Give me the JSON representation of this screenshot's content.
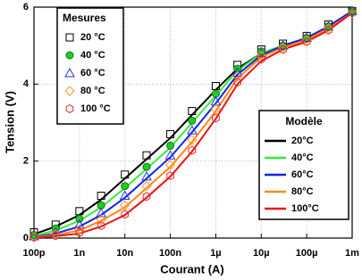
{
  "chart_data": {
    "type": "line",
    "x_label": "Courant (A)",
    "y_label": "Tension (V)",
    "xscale": "log",
    "xlim": [
      1e-10,
      0.001
    ],
    "xticks": [
      {
        "value": 1e-10,
        "label": "100p"
      },
      {
        "value": 1e-09,
        "label": "1n"
      },
      {
        "value": 1e-08,
        "label": "10n"
      },
      {
        "value": 1e-07,
        "label": "100n"
      },
      {
        "value": 1e-06,
        "label": "1µ"
      },
      {
        "value": 1e-05,
        "label": "10µ"
      },
      {
        "value": 0.0001,
        "label": "100µ"
      },
      {
        "value": 0.001,
        "label": "1m"
      }
    ],
    "ylim": [
      0,
      6
    ],
    "yticks": [
      0,
      2,
      4,
      6
    ],
    "grid": true,
    "x": [
      1e-10,
      3e-10,
      1e-09,
      3e-09,
      1e-08,
      3e-08,
      1e-07,
      3e-07,
      1e-06,
      3e-06,
      1e-05,
      3e-05,
      0.0001,
      0.0003,
      0.001
    ],
    "measured_title": "Mesures",
    "measured": [
      {
        "name": "20 °C",
        "color": "#000000",
        "marker": "square",
        "values": [
          0.15,
          0.35,
          0.7,
          1.1,
          1.65,
          2.15,
          2.7,
          3.3,
          3.95,
          4.5,
          4.9,
          5.05,
          5.25,
          5.55,
          5.9
        ]
      },
      {
        "name": "40 °C",
        "color": "#22cc22",
        "marker": "circle",
        "values": [
          0.08,
          0.25,
          0.5,
          0.85,
          1.35,
          1.85,
          2.4,
          3.05,
          3.75,
          4.4,
          4.85,
          5.0,
          5.2,
          5.5,
          5.9
        ]
      },
      {
        "name": "60 °C",
        "color": "#2233ee",
        "marker": "triangle",
        "values": [
          0.05,
          0.15,
          0.35,
          0.65,
          1.1,
          1.6,
          2.15,
          2.8,
          3.55,
          4.3,
          4.8,
          5.0,
          5.2,
          5.5,
          5.9
        ]
      },
      {
        "name": "80 °C",
        "color": "#ff9922",
        "marker": "diamond",
        "values": [
          0.03,
          0.1,
          0.22,
          0.48,
          0.85,
          1.35,
          1.9,
          2.55,
          3.35,
          4.2,
          4.75,
          4.95,
          5.15,
          5.45,
          5.85
        ]
      },
      {
        "name": "100 °C",
        "color": "#ee2222",
        "marker": "hexagon",
        "values": [
          0.02,
          0.06,
          0.14,
          0.32,
          0.62,
          1.08,
          1.62,
          2.28,
          3.12,
          4.05,
          4.65,
          4.9,
          5.1,
          5.4,
          5.85
        ]
      }
    ],
    "model_title": "Modèle",
    "model": [
      {
        "name": "20°C",
        "color": "#000000",
        "values": [
          0.1,
          0.3,
          0.6,
          1.0,
          1.55,
          2.05,
          2.6,
          3.2,
          3.85,
          4.4,
          4.8,
          5.0,
          5.2,
          5.5,
          5.9
        ]
      },
      {
        "name": "40°C",
        "color": "#33ee33",
        "values": [
          0.05,
          0.2,
          0.45,
          0.8,
          1.3,
          1.8,
          2.35,
          3.0,
          3.7,
          4.35,
          4.8,
          5.0,
          5.2,
          5.5,
          5.9
        ]
      },
      {
        "name": "60°C",
        "color": "#1122ee",
        "values": [
          0.03,
          0.12,
          0.3,
          0.6,
          1.05,
          1.55,
          2.1,
          2.75,
          3.5,
          4.25,
          4.75,
          5.0,
          5.2,
          5.5,
          5.9
        ]
      },
      {
        "name": "80°C",
        "color": "#ff8811",
        "values": [
          0.02,
          0.08,
          0.2,
          0.45,
          0.8,
          1.3,
          1.85,
          2.5,
          3.3,
          4.15,
          4.7,
          4.95,
          5.15,
          5.45,
          5.85
        ]
      },
      {
        "name": "100°C",
        "color": "#ee1111",
        "values": [
          0.01,
          0.05,
          0.12,
          0.3,
          0.6,
          1.05,
          1.6,
          2.25,
          3.1,
          4.0,
          4.6,
          4.9,
          5.1,
          5.4,
          5.85
        ]
      }
    ]
  }
}
